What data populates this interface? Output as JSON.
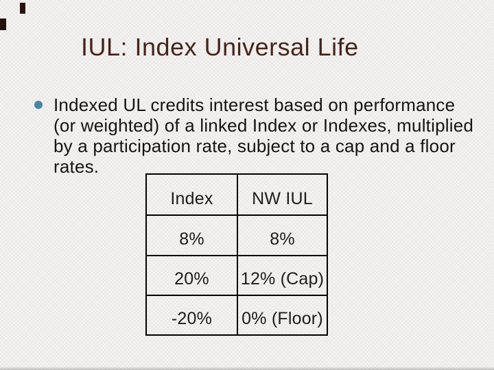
{
  "slide": {
    "title": "IUL: Index Universal Life",
    "bullet": {
      "icon": "bullet-dot-icon",
      "lines": [
        "Indexed UL credits interest based on performance",
        "(or weighted) of a linked Index or Indexes, multiplied",
        "by a participation rate, subject to a cap and a floor",
        "rates."
      ]
    },
    "table": {
      "headers": [
        "Index",
        "NW IUL"
      ],
      "rows": [
        [
          "8%",
          "8%"
        ],
        [
          "20%",
          "12% (Cap)"
        ],
        [
          "-20%",
          "0% (Floor)"
        ]
      ]
    },
    "colors": {
      "title": "#45241a",
      "bullet_dot": "#4786a3",
      "body_text": "#141414",
      "table_border": "#000000",
      "decor": "#24120d",
      "background": "#f5f4f2"
    }
  }
}
